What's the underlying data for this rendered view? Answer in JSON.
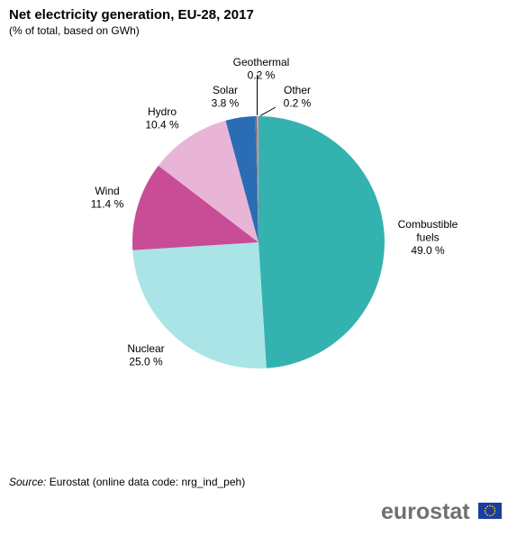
{
  "title": "Net electricity generation, EU-28, 2017",
  "subtitle": "(% of total, based on GWh)",
  "source_label": "Source:",
  "source_text": "Eurostat (online data code: nrg_ind_peh)",
  "logo_text": "eurostat",
  "colors": {
    "combustible": "#33b2b0",
    "nuclear": "#aae4e6",
    "wind": "#c94d96",
    "hydro": "#e9b5d6",
    "solar": "#2a6db5",
    "geothermal": "#7a6d6d",
    "other": "#c9a0b8",
    "flag_blue": "#1a3da0",
    "flag_star": "#ffcc00"
  },
  "chart_data": {
    "type": "pie",
    "title": "Net electricity generation, EU-28, 2017",
    "subtitle": "(% of total, based on GWh)",
    "unit": "%",
    "slices": [
      {
        "name": "Combustible fuels",
        "value": 49.0,
        "label_lines": [
          "Combustible",
          "fuels",
          "49.0 %"
        ],
        "color_key": "combustible"
      },
      {
        "name": "Nuclear",
        "value": 25.0,
        "label_lines": [
          "Nuclear",
          "25.0 %"
        ],
        "color_key": "nuclear"
      },
      {
        "name": "Wind",
        "value": 11.4,
        "label_lines": [
          "Wind",
          "11.4 %"
        ],
        "color_key": "wind"
      },
      {
        "name": "Hydro",
        "value": 10.4,
        "label_lines": [
          "Hydro",
          "10.4 %"
        ],
        "color_key": "hydro"
      },
      {
        "name": "Solar",
        "value": 3.8,
        "label_lines": [
          "Solar",
          "3.8 %"
        ],
        "color_key": "solar"
      },
      {
        "name": "Geothermal",
        "value": 0.2,
        "label_lines": [
          "Geothermal",
          "0.2 %"
        ],
        "color_key": "geothermal"
      },
      {
        "name": "Other",
        "value": 0.2,
        "label_lines": [
          "Other",
          "0.2 %"
        ],
        "color_key": "other"
      }
    ]
  }
}
